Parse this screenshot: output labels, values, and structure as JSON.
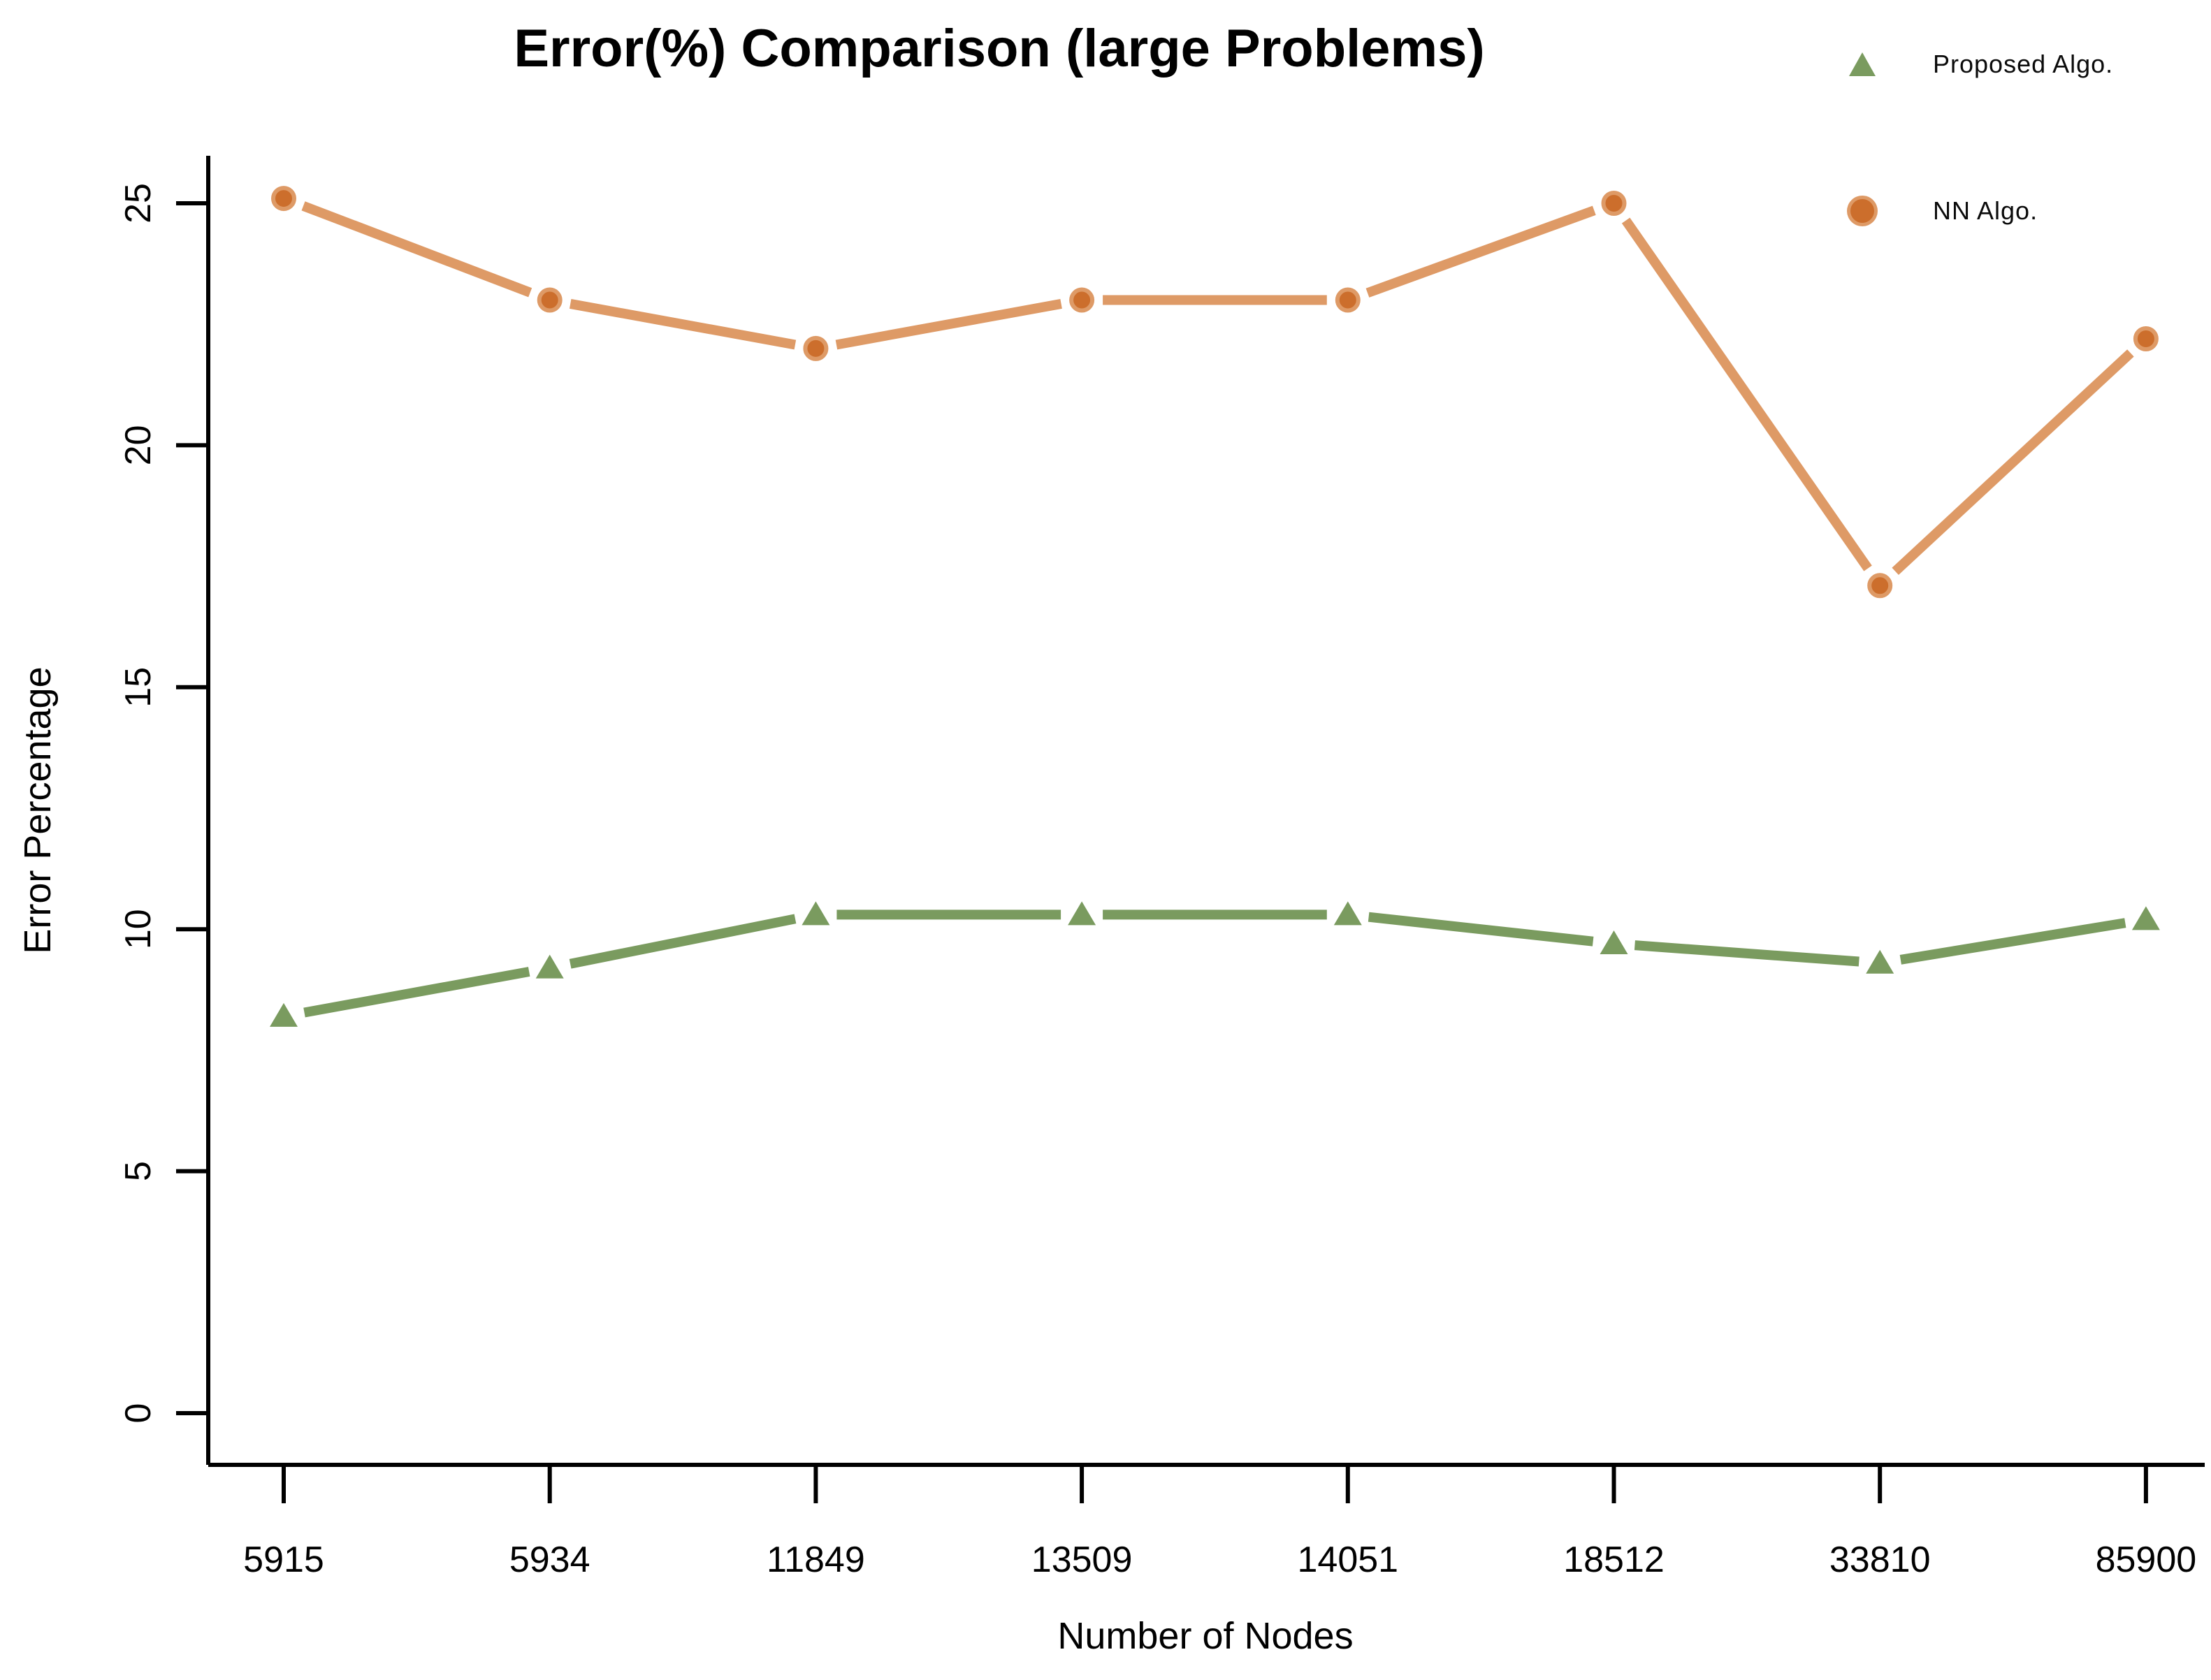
{
  "chart_data": {
    "type": "line",
    "title": "Error(%) Comparison (large Problems)",
    "xlabel": "Number of Nodes",
    "ylabel": "Error Percentage",
    "categories": [
      "5915",
      "5934",
      "11849",
      "13509",
      "14051",
      "18512",
      "33810",
      "85900"
    ],
    "yticks": [
      0,
      5,
      10,
      15,
      20,
      25
    ],
    "ylim": [
      0,
      26.5
    ],
    "grid": false,
    "legend_position": "top-right",
    "series": [
      {
        "name": "Proposed Algo.",
        "marker": "triangle",
        "color": "#7A9B5F",
        "line_color": "#7A9B5F",
        "values": [
          8.2,
          9.2,
          10.3,
          10.3,
          10.3,
          9.7,
          9.3,
          10.2
        ]
      },
      {
        "name": "NN Algo.",
        "marker": "circle",
        "color": "#CC6E2C",
        "line_color": "#DE9A66",
        "values": [
          25.1,
          23.0,
          22.0,
          23.0,
          23.0,
          25.0,
          17.1,
          22.2
        ]
      }
    ]
  }
}
